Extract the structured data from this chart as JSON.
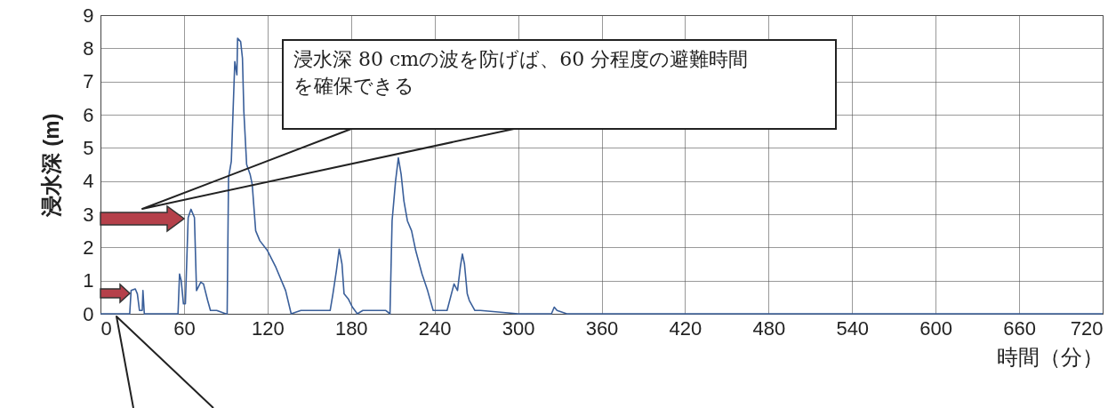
{
  "chart_data": {
    "type": "line",
    "xlabel": "時間（分）",
    "ylabel": "浸水深 (m)",
    "xlim": [
      0,
      720
    ],
    "xticks": [
      0,
      60,
      120,
      180,
      240,
      300,
      360,
      420,
      480,
      540,
      600,
      660,
      720
    ],
    "ylim": [
      0,
      9
    ],
    "yticks": [
      0,
      1,
      2,
      3,
      4,
      5,
      6,
      7,
      8,
      9
    ],
    "grid": true,
    "annotations": [
      "浸水深 80 cmの波を防げば、60 分程度の避難時間を確保できる"
    ],
    "series": [
      {
        "color": "#3a5f9a",
        "x": [
          0,
          21,
          22,
          25,
          26.5,
          28,
          30,
          30.5,
          31.5,
          55.7,
          56.8,
          58,
          59.6,
          61,
          63,
          65,
          67.5,
          69,
          72,
          74,
          77,
          79,
          83.5,
          90,
          91,
          92,
          94,
          96.5,
          98,
          98.5,
          100.7,
          102,
          103,
          105,
          107.5,
          109,
          111.5,
          114.5,
          120,
          126,
          133,
          137,
          144,
          148,
          154,
          165,
          167,
          169.5,
          171.5,
          173.5,
          175,
          178,
          181,
          184.5,
          188.5,
          197,
          205,
          208,
          209.5,
          212,
          214,
          216,
          218,
          220.5,
          223.5,
          226.5,
          231,
          235,
          239,
          243.5,
          249,
          254,
          256.5,
          258.5,
          260,
          261.5,
          263.5,
          265,
          269,
          273,
          300,
          324,
          326,
          328,
          335,
          720
        ],
        "values": [
          0,
          0,
          0.7,
          0.75,
          0.6,
          0.1,
          0.1,
          0.7,
          0,
          0,
          1.2,
          1.0,
          0.3,
          0.3,
          2.9,
          3.15,
          2.9,
          0.7,
          0.95,
          0.9,
          0.4,
          0.1,
          0.1,
          0,
          0,
          4.1,
          4.6,
          7.6,
          7.2,
          8.3,
          8.2,
          7.7,
          6.1,
          4.5,
          4.2,
          3.9,
          2.5,
          2.2,
          1.9,
          1.4,
          0.7,
          0,
          0.1,
          0.1,
          0.1,
          0.1,
          0.6,
          1.3,
          1.95,
          1.5,
          0.6,
          0.45,
          0.2,
          0,
          0.1,
          0.1,
          0.1,
          0,
          2.8,
          4.0,
          4.7,
          4.2,
          3.4,
          2.8,
          2.5,
          1.9,
          1.2,
          0.7,
          0.1,
          0.1,
          0.1,
          0.9,
          0.7,
          1.4,
          1.8,
          1.5,
          0.6,
          0.4,
          0.1,
          0.1,
          0,
          0,
          0.2,
          0.1,
          0,
          0
        ]
      }
    ]
  }
}
